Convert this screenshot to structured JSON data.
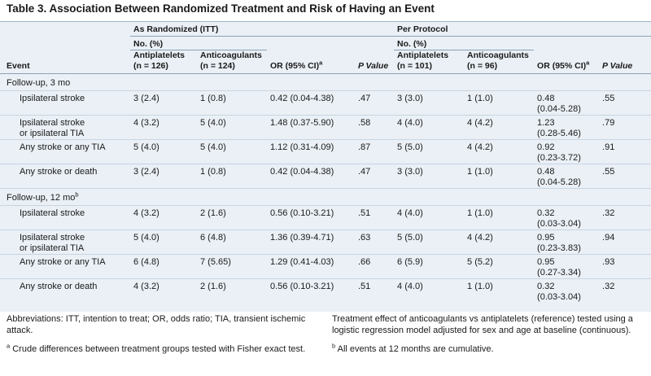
{
  "title": "Table 3. Association Between Randomized Treatment and Risk of Having an Event",
  "headers": {
    "event": "Event",
    "itt_group": "As Randomized (ITT)",
    "pp_group": "Per Protocol",
    "no_pct": "No. (%)",
    "antiplatelets_itt_l1": "Antiplatelets",
    "antiplatelets_itt_l2": "(n = 126)",
    "anticoagulants_itt_l1": "Anticoagulants",
    "anticoagulants_itt_l2": "(n = 124)",
    "antiplatelets_pp_l1": "Antiplatelets",
    "antiplatelets_pp_l2": "(n = 101)",
    "anticoagulants_pp_l1": "Anticoagulants",
    "anticoagulants_pp_l2": "(n = 96)",
    "or": "OR (95% CI)",
    "or_sup": "a",
    "pvalue": "P Value"
  },
  "sections": [
    {
      "label": "Follow-up, 3 mo",
      "label_sup": "",
      "rows": [
        {
          "event_l1": "Ipsilateral stroke",
          "event_l2": "",
          "ap_itt": "3 (2.4)",
          "ac_itt": "1 (0.8)",
          "or_itt": "0.42 (0.04-4.38)",
          "p_itt": ".47",
          "ap_pp": "3 (3.0)",
          "ac_pp": "1 (1.0)",
          "or_pp_l1": "0.48",
          "or_pp_l2": "(0.04-5.28)",
          "p_pp": ".55"
        },
        {
          "event_l1": "Ipsilateral stroke",
          "event_l2": "or ipsilateral TIA",
          "ap_itt": "4 (3.2)",
          "ac_itt": "5 (4.0)",
          "or_itt": "1.48 (0.37-5.90)",
          "p_itt": ".58",
          "ap_pp": "4 (4.0)",
          "ac_pp": "4 (4.2)",
          "or_pp_l1": "1.23",
          "or_pp_l2": "(0.28-5.46)",
          "p_pp": ".79"
        },
        {
          "event_l1": "Any stroke or any TIA",
          "event_l2": "",
          "ap_itt": "5 (4.0)",
          "ac_itt": "5 (4.0)",
          "or_itt": "1.12 (0.31-4.09)",
          "p_itt": ".87",
          "ap_pp": "5 (5.0)",
          "ac_pp": "4 (4.2)",
          "or_pp_l1": "0.92",
          "or_pp_l2": "(0.23-3.72)",
          "p_pp": ".91"
        },
        {
          "event_l1": "Any stroke or death",
          "event_l2": "",
          "ap_itt": "3 (2.4)",
          "ac_itt": "1 (0.8)",
          "or_itt": "0.42 (0.04-4.38)",
          "p_itt": ".47",
          "ap_pp": "3 (3.0)",
          "ac_pp": "1 (1.0)",
          "or_pp_l1": "0.48",
          "or_pp_l2": "(0.04-5.28)",
          "p_pp": ".55"
        }
      ]
    },
    {
      "label": "Follow-up, 12 mo",
      "label_sup": "b",
      "rows": [
        {
          "event_l1": "Ipsilateral stroke",
          "event_l2": "",
          "ap_itt": "4 (3.2)",
          "ac_itt": "2 (1.6)",
          "or_itt": "0.56 (0.10-3.21)",
          "p_itt": ".51",
          "ap_pp": "4 (4.0)",
          "ac_pp": "1 (1.0)",
          "or_pp_l1": "0.32",
          "or_pp_l2": "(0.03-3.04)",
          "p_pp": ".32"
        },
        {
          "event_l1": "Ipsilateral stroke",
          "event_l2": "or ipsilateral TIA",
          "ap_itt": "5 (4.0)",
          "ac_itt": "6 (4.8)",
          "or_itt": "1.36 (0.39-4.71)",
          "p_itt": ".63",
          "ap_pp": "5 (5.0)",
          "ac_pp": "4 (4.2)",
          "or_pp_l1": "0.95",
          "or_pp_l2": "(0.23-3.83)",
          "p_pp": ".94"
        },
        {
          "event_l1": "Any stroke or any TIA",
          "event_l2": "",
          "ap_itt": "6 (4.8)",
          "ac_itt": "7 (5.65)",
          "or_itt": "1.29 (0.41-4.03)",
          "p_itt": ".66",
          "ap_pp": "6 (5.9)",
          "ac_pp": "5 (5.2)",
          "or_pp_l1": "0.95",
          "or_pp_l2": "(0.27-3.34)",
          "p_pp": ".93"
        },
        {
          "event_l1": "Any stroke or death",
          "event_l2": "",
          "ap_itt": "4 (3.2)",
          "ac_itt": "2 (1.6)",
          "or_itt": "0.56 (0.10-3.21)",
          "p_itt": ".51",
          "ap_pp": "4 (4.0)",
          "ac_pp": "1 (1.0)",
          "or_pp_l1": "0.32",
          "or_pp_l2": "(0.03-3.04)",
          "p_pp": ".32"
        }
      ]
    }
  ],
  "footnotes": {
    "abbreviations_l1": "Abbreviations: ITT, intention to treat; OR, odds ratio; TIA, transient ischemic",
    "abbreviations_l2": "attack.",
    "note_a_sup": "a",
    "note_a": "Crude differences between treatment groups tested with Fisher exact test.",
    "treatment_l1": "Treatment effect of anticoagulants vs antiplatelets (reference) tested using a",
    "treatment_l2": "logistic regression model adjusted for sex and age at baseline (continuous).",
    "note_b_sup": "b",
    "note_b": "All events at 12 months are cumulative."
  },
  "colors": {
    "table_bg": "#eaf0f6",
    "rule": "#8aa1b8",
    "row_divider": "#c8d5e2"
  }
}
